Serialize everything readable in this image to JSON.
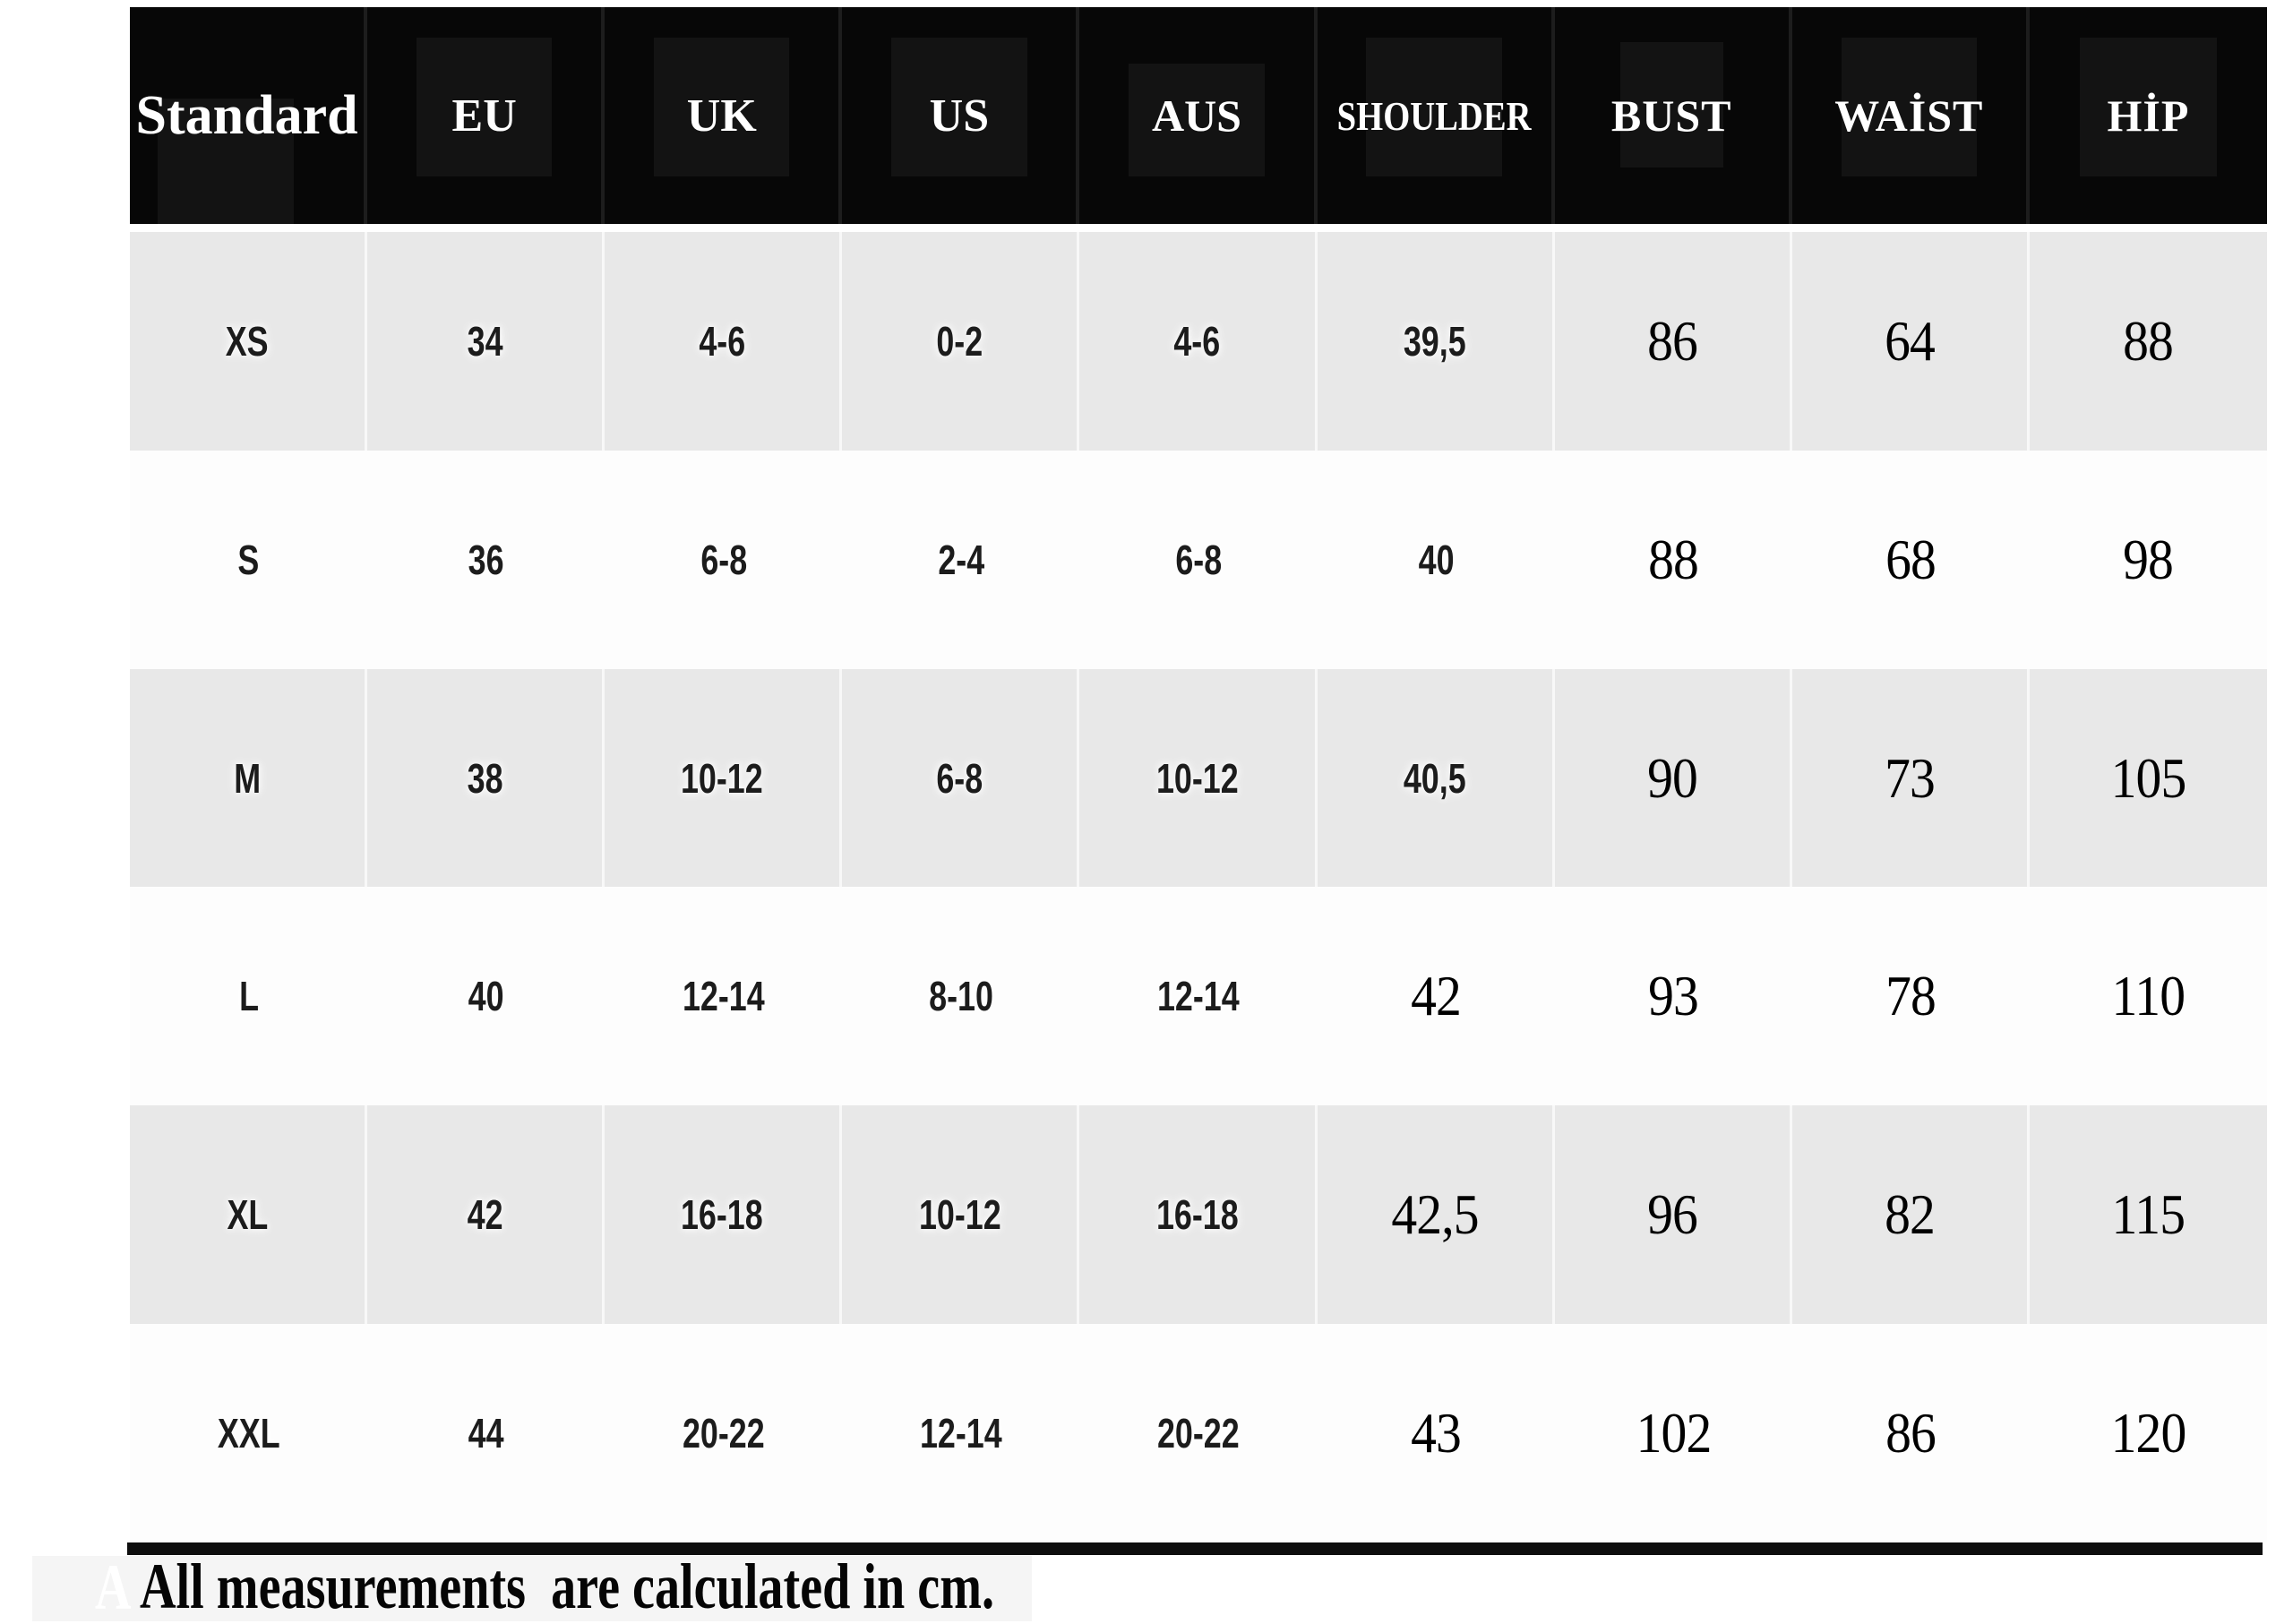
{
  "chart_data": {
    "type": "table",
    "columns": [
      "Standard",
      "EU",
      "UK",
      "US",
      "AUS",
      "SHOULDER",
      "BUST",
      "WAİST",
      "HİP"
    ],
    "rows": [
      [
        "XS",
        "34",
        "4-6",
        "0-2",
        "4-6",
        "39,5",
        "86",
        "64",
        "88"
      ],
      [
        "S",
        "36",
        "6-8",
        "2-4",
        "6-8",
        "40",
        "88",
        "68",
        "98"
      ],
      [
        "M",
        "38",
        "10-12",
        "6-8",
        "10-12",
        "40,5",
        "90",
        "73",
        "105"
      ],
      [
        "L",
        "40",
        "12-14",
        "8-10",
        "12-14",
        "42",
        "93",
        "78",
        "110"
      ],
      [
        "XL",
        "42",
        "16-18",
        "10-12",
        "16-18",
        "42,5",
        "96",
        "82",
        "115"
      ],
      [
        "XXL",
        "44",
        "20-22",
        "12-14",
        "20-22",
        "43",
        "102",
        "86",
        "120"
      ]
    ],
    "units": "cm",
    "note": "All measurements  are calculated in cm.",
    "layout_hints": {
      "header_style": "black banner, white serif text",
      "row_striping": "gray / white alternating starting gray"
    }
  },
  "footer": {
    "note": "All measurements  are calculated in cm.",
    "ghost_letter": "A"
  },
  "colors": {
    "header_bg": "#070707",
    "header_text": "#ffffff",
    "row_gray": "#e8e8e8",
    "row_white": "#fdfdfd",
    "rule": "#0e0e0e",
    "footer_band": "#f5f5f5"
  }
}
